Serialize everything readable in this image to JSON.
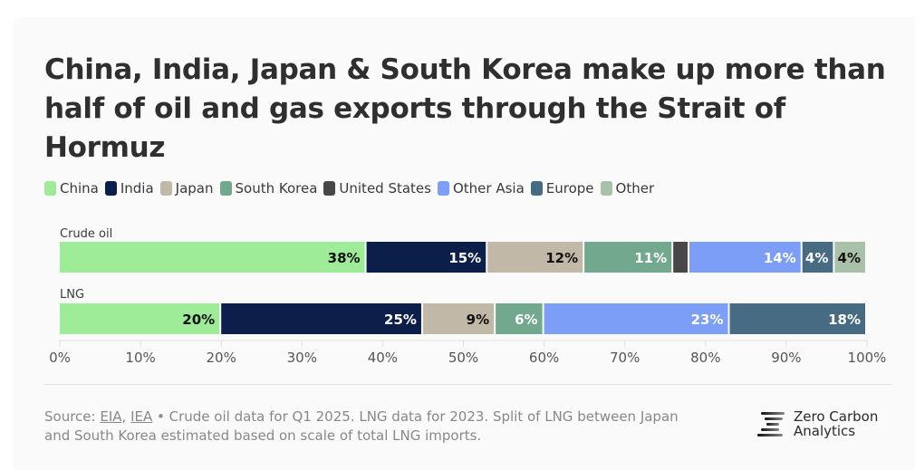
{
  "title": "China, India, Japan & South Korea make up more than half of oil and gas exports through the Strait of Hormuz",
  "legend": [
    {
      "name": "China",
      "color": "#9eec98"
    },
    {
      "name": "India",
      "color": "#0c1f4b"
    },
    {
      "name": "Japan",
      "color": "#c1b8a8"
    },
    {
      "name": "South Korea",
      "color": "#72a98e"
    },
    {
      "name": "United States",
      "color": "#484848"
    },
    {
      "name": "Other Asia",
      "color": "#7c9ef6"
    },
    {
      "name": "Europe",
      "color": "#476b82"
    },
    {
      "name": "Other",
      "color": "#a9c1a9"
    }
  ],
  "chart_data": {
    "type": "bar",
    "orientation": "horizontal",
    "stacked": true,
    "title": "China, India, Japan & South Korea make up more than half of oil and gas exports through the Strait of Hormuz",
    "categories": [
      "Crude oil",
      "LNG"
    ],
    "series": [
      {
        "name": "China",
        "values": [
          38,
          20
        ],
        "labels": [
          "38%",
          "20%"
        ]
      },
      {
        "name": "India",
        "values": [
          15,
          25
        ],
        "labels": [
          "15%",
          "25%"
        ]
      },
      {
        "name": "Japan",
        "values": [
          12,
          9
        ],
        "labels": [
          "12%",
          "9%"
        ]
      },
      {
        "name": "South Korea",
        "values": [
          11,
          6
        ],
        "labels": [
          "11%",
          "6%"
        ]
      },
      {
        "name": "United States",
        "values": [
          2,
          0
        ],
        "labels": [
          "",
          ""
        ]
      },
      {
        "name": "Other Asia",
        "values": [
          14,
          23
        ],
        "labels": [
          "14%",
          "23%"
        ]
      },
      {
        "name": "Europe",
        "values": [
          4,
          18
        ],
        "labels": [
          "4%",
          "18%"
        ]
      },
      {
        "name": "Other",
        "values": [
          4,
          0
        ],
        "labels": [
          "4%",
          ""
        ]
      }
    ],
    "label_colors": [
      "#111111",
      "#ffffff",
      "#111111",
      "#ffffff",
      "#ffffff",
      "#ffffff",
      "#ffffff",
      "#111111"
    ],
    "xlim": [
      0,
      100
    ],
    "xticks": [
      "0%",
      "10%",
      "20%",
      "30%",
      "40%",
      "50%",
      "60%",
      "70%",
      "80%",
      "90%",
      "100%"
    ],
    "legend_position": "top-left",
    "grid": false
  },
  "footer": {
    "source_prefix": "Source: ",
    "source_link_1": "EIA",
    "source_sep": ", ",
    "source_link_2": "IEA",
    "note": " • Crude oil data for Q1 2025. LNG data for 2023. Split of LNG between Japan and South Korea estimated based on scale of total LNG imports."
  },
  "logo": {
    "line1": "Zero Carbon",
    "line2": "Analytics"
  }
}
